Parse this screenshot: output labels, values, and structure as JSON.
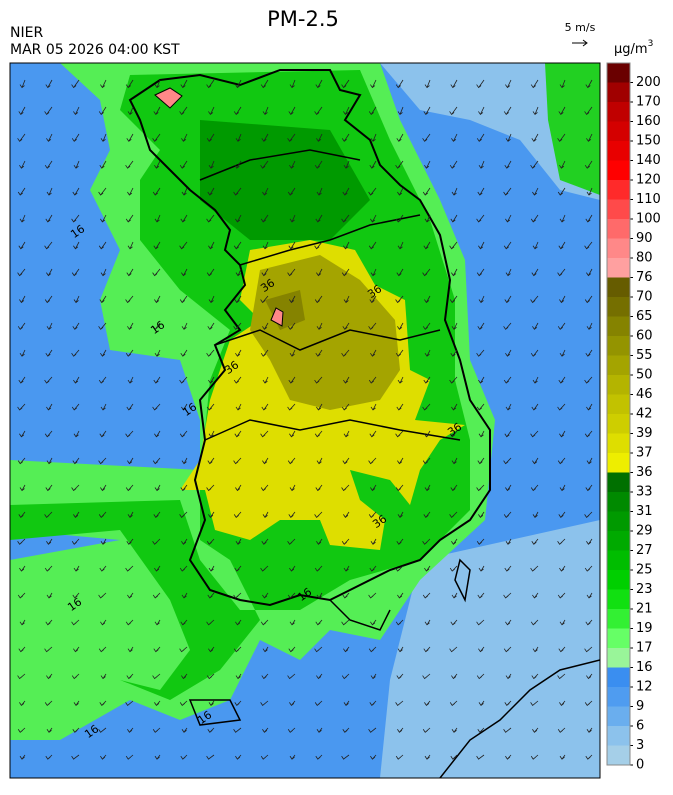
{
  "header": {
    "title": "PM-2.5",
    "agency": "NIER",
    "timestamp": "MAR 05 2026 04:00 KST",
    "wind_scale": "5 m/s",
    "unit_base": "µg/m",
    "unit_sup": "3"
  },
  "legend": {
    "levels": [
      0,
      3,
      6,
      9,
      12,
      16,
      17,
      19,
      21,
      23,
      25,
      27,
      29,
      31,
      33,
      36,
      37,
      39,
      42,
      46,
      50,
      55,
      60,
      65,
      70,
      76,
      80,
      90,
      100,
      110,
      120,
      140,
      150,
      160,
      170,
      200
    ],
    "colors": [
      "#a5cfe8",
      "#8cc2ec",
      "#6aaeee",
      "#4f9cf0",
      "#3a8ef0",
      "#99f599",
      "#66ff66",
      "#33f033",
      "#11e011",
      "#00cf00",
      "#00bd00",
      "#00aa00",
      "#009a00",
      "#008a00",
      "#007000",
      "#eeee00",
      "#dede00",
      "#cece00",
      "#c2c200",
      "#b4b400",
      "#a4a400",
      "#949400",
      "#858300",
      "#756f00",
      "#665c00",
      "#ffa0a0",
      "#ff8888",
      "#ff6a6a",
      "#ff4a4a",
      "#ff2a2a",
      "#ff0000",
      "#e80000",
      "#d40000",
      "#c00000",
      "#a00000",
      "#6a0000"
    ]
  },
  "contour_labels": [
    "16",
    "16",
    "36",
    "36",
    "36",
    "36",
    "36",
    "16",
    "16",
    "16",
    "16",
    "16"
  ]
}
